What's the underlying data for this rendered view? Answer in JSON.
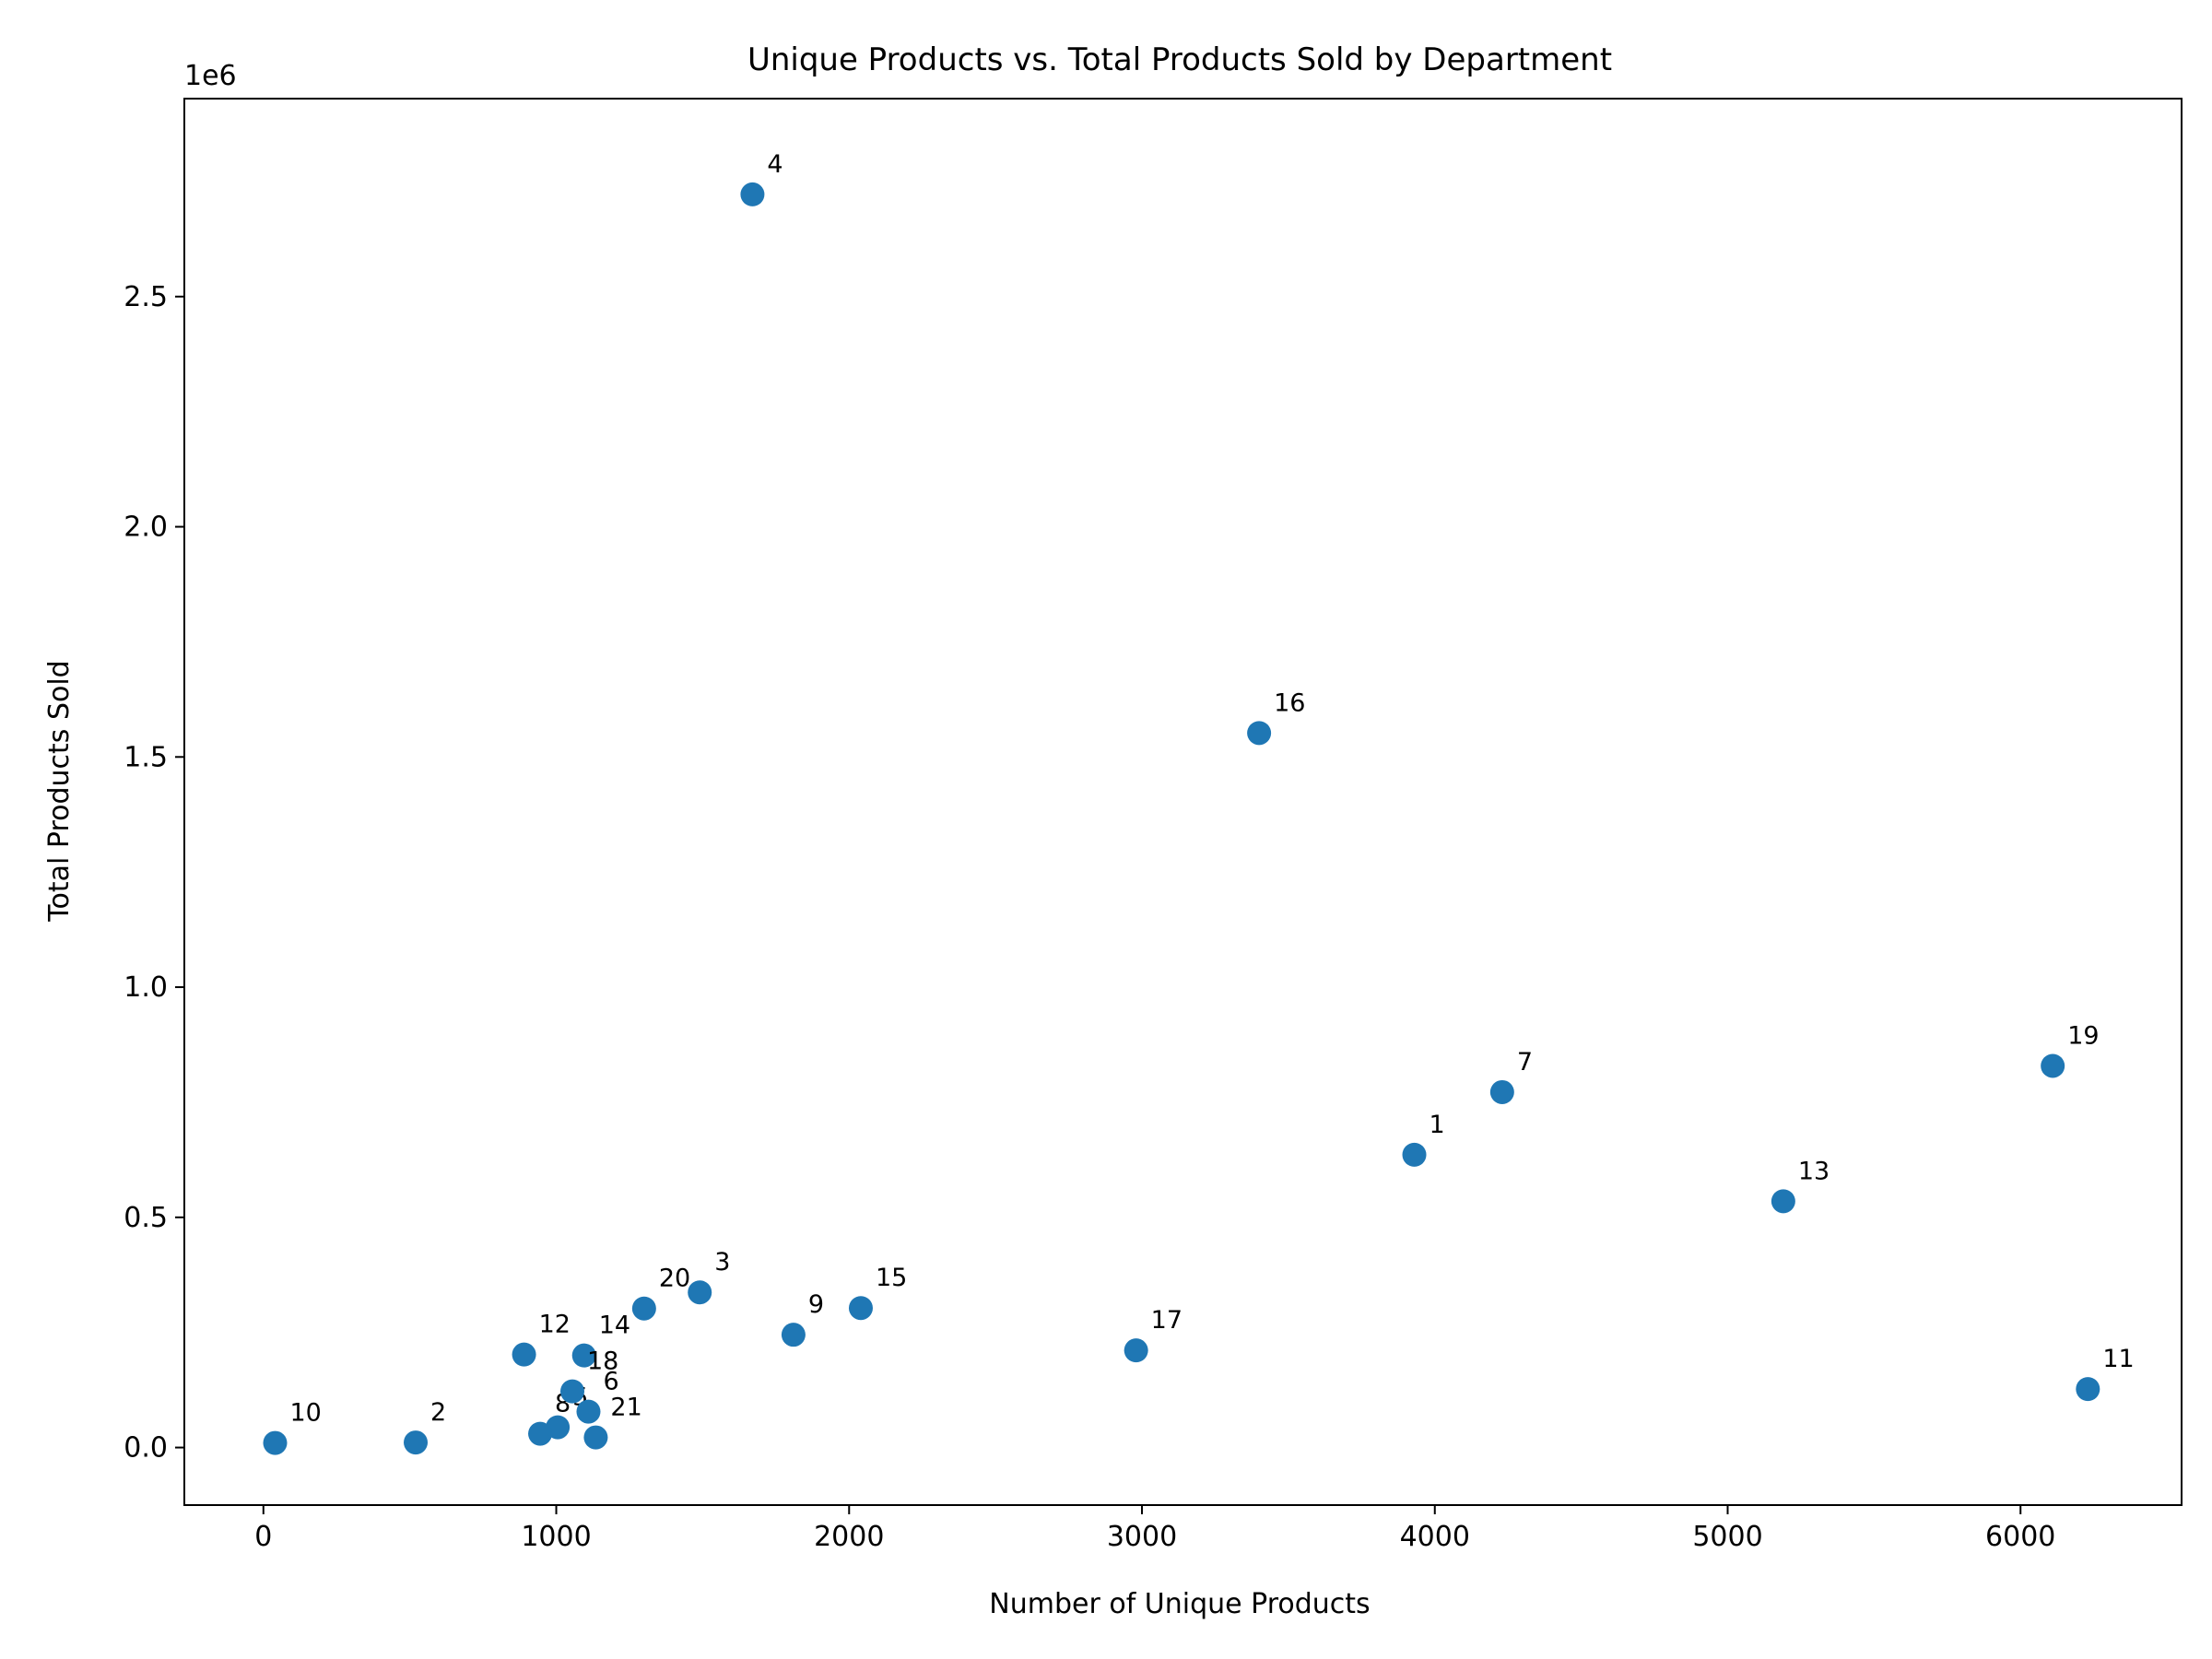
{
  "chart_data": {
    "type": "scatter",
    "title": "Unique Products vs. Total Products Sold by Department",
    "xlabel": "Number of Unique Products",
    "ylabel": "Total Products Sold",
    "y_offset_label": "1e6",
    "xlim": [
      -270,
      6550
    ],
    "ylim": [
      -0.125,
      2.93
    ],
    "x_ticks": [
      0,
      1000,
      2000,
      3000,
      4000,
      5000,
      6000
    ],
    "x_tick_labels": [
      "0",
      "1000",
      "2000",
      "3000",
      "4000",
      "5000",
      "6000"
    ],
    "y_ticks": [
      0.0,
      0.5,
      1.0,
      1.5,
      2.0,
      2.5
    ],
    "y_tick_labels": [
      "0.0",
      "0.5",
      "1.0",
      "1.5",
      "2.0",
      "2.5"
    ],
    "y_unit": "millions (1e6)",
    "grid": false,
    "color": "#1f77b4",
    "points": [
      {
        "label": "1",
        "x": 3930,
        "y": 0.636
      },
      {
        "label": "2",
        "x": 520,
        "y": 0.011
      },
      {
        "label": "3",
        "x": 1490,
        "y": 0.337
      },
      {
        "label": "4",
        "x": 1670,
        "y": 2.722
      },
      {
        "label": "5",
        "x": 1005,
        "y": 0.044
      },
      {
        "label": "6",
        "x": 1110,
        "y": 0.078
      },
      {
        "label": "7",
        "x": 4230,
        "y": 0.772
      },
      {
        "label": "8",
        "x": 945,
        "y": 0.03
      },
      {
        "label": "9",
        "x": 1810,
        "y": 0.245
      },
      {
        "label": "10",
        "x": 40,
        "y": 0.01
      },
      {
        "label": "11",
        "x": 6230,
        "y": 0.127
      },
      {
        "label": "12",
        "x": 890,
        "y": 0.202
      },
      {
        "label": "13",
        "x": 5190,
        "y": 0.535
      },
      {
        "label": "14",
        "x": 1095,
        "y": 0.2
      },
      {
        "label": "15",
        "x": 2040,
        "y": 0.303
      },
      {
        "label": "16",
        "x": 3400,
        "y": 1.552
      },
      {
        "label": "17",
        "x": 2980,
        "y": 0.211
      },
      {
        "label": "18",
        "x": 1055,
        "y": 0.122
      },
      {
        "label": "19",
        "x": 6110,
        "y": 0.829
      },
      {
        "label": "20",
        "x": 1300,
        "y": 0.302
      },
      {
        "label": "21",
        "x": 1135,
        "y": 0.022
      }
    ]
  }
}
